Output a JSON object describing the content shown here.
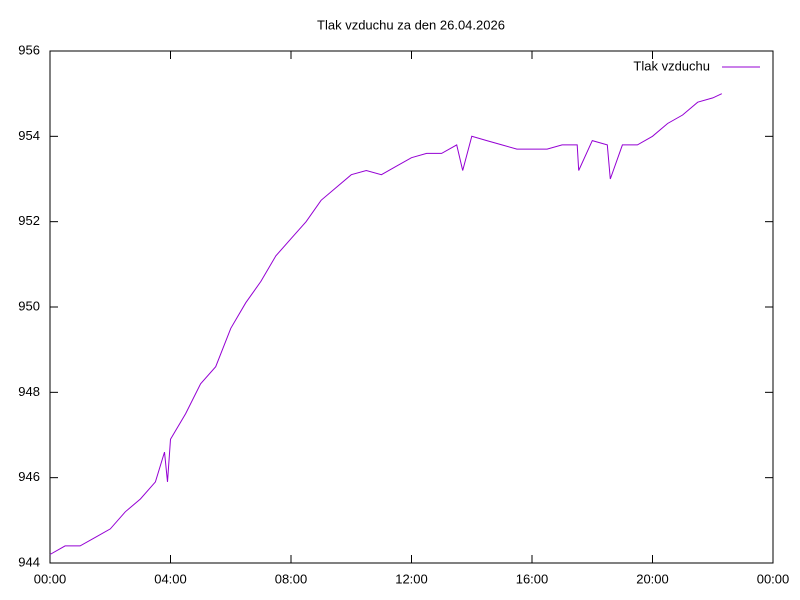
{
  "chart_data": {
    "type": "line",
    "title": "Tlak vzduchu za den 26.04.2026",
    "x": [
      0,
      0.5,
      1,
      1.5,
      2,
      2.5,
      3,
      3.5,
      3.8,
      3.9,
      4,
      4.5,
      5,
      5.5,
      6,
      6.5,
      7,
      7.5,
      8,
      8.5,
      9,
      9.5,
      10,
      10.5,
      11,
      11.5,
      12,
      12.5,
      13,
      13.5,
      13.7,
      14,
      14.5,
      15,
      15.5,
      16,
      16.5,
      17,
      17.5,
      17.55,
      18,
      18.5,
      18.6,
      19,
      19.5,
      20,
      20.5,
      21,
      21.5,
      22,
      22.3
    ],
    "series": [
      {
        "name": "Tlak vzduchu",
        "color": "#9400d3",
        "values": [
          944.2,
          944.4,
          944.4,
          944.6,
          944.8,
          945.2,
          945.5,
          945.9,
          946.6,
          945.9,
          946.9,
          947.5,
          948.2,
          948.6,
          949.5,
          950.1,
          950.6,
          951.2,
          951.6,
          952.0,
          952.5,
          952.8,
          953.1,
          953.2,
          953.1,
          953.3,
          953.5,
          953.6,
          953.6,
          953.8,
          953.2,
          954.0,
          953.9,
          953.8,
          953.7,
          953.7,
          953.7,
          953.8,
          953.8,
          953.2,
          953.9,
          953.8,
          953.0,
          953.8,
          953.8,
          954.0,
          954.3,
          954.5,
          954.8,
          954.9,
          955.0
        ]
      }
    ],
    "xlim": [
      0,
      24
    ],
    "xticks": [
      {
        "value": 0,
        "label": "00:00"
      },
      {
        "value": 4,
        "label": "04:00"
      },
      {
        "value": 8,
        "label": "08:00"
      },
      {
        "value": 12,
        "label": "12:00"
      },
      {
        "value": 16,
        "label": "16:00"
      },
      {
        "value": 20,
        "label": "20:00"
      },
      {
        "value": 24,
        "label": "00:00"
      }
    ],
    "ylim": [
      944,
      956
    ],
    "yticks": [
      944,
      946,
      948,
      950,
      952,
      954,
      956
    ],
    "legend": "top-right"
  }
}
